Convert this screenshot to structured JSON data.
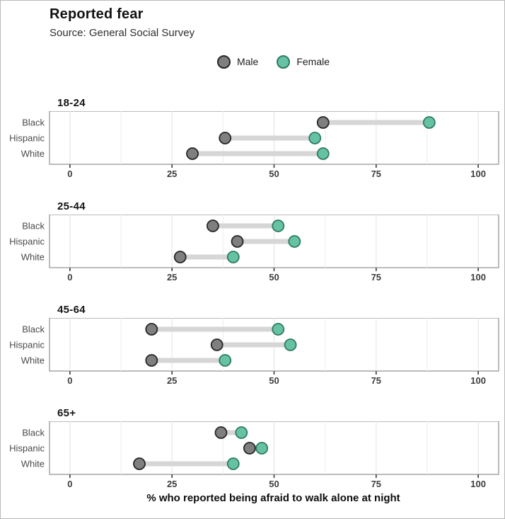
{
  "header": {
    "title": "Reported fear",
    "subtitle": "Source: General Social Survey"
  },
  "legend": {
    "items": [
      {
        "label": "Male",
        "fill": "#7f7f7f",
        "stroke": "#262626"
      },
      {
        "label": "Female",
        "fill": "#66c2a5",
        "stroke": "#2f7a60"
      }
    ]
  },
  "chart_data": {
    "type": "dumbbell",
    "title": "Reported fear",
    "subtitle": "Source: General Social Survey",
    "xlabel": "% who reported being afraid to walk alone at night",
    "x_ticks": [
      0,
      25,
      50,
      75,
      100
    ],
    "x_minor_ticks": [
      12.5,
      37.5,
      62.5,
      87.5
    ],
    "x_range": [
      -5,
      105
    ],
    "grid": "vertical gridlines at major and minor ticks",
    "legend_position": "top-center",
    "series_names": [
      "Male",
      "Female"
    ],
    "facets": [
      {
        "label": "18-24",
        "rows": [
          {
            "category": "Black",
            "male": 62,
            "female": 88
          },
          {
            "category": "Hispanic",
            "male": 38,
            "female": 60
          },
          {
            "category": "White",
            "male": 30,
            "female": 62
          }
        ]
      },
      {
        "label": "25-44",
        "rows": [
          {
            "category": "Black",
            "male": 35,
            "female": 51
          },
          {
            "category": "Hispanic",
            "male": 41,
            "female": 55
          },
          {
            "category": "White",
            "male": 27,
            "female": 40
          }
        ]
      },
      {
        "label": "45-64",
        "rows": [
          {
            "category": "Black",
            "male": 20,
            "female": 51
          },
          {
            "category": "Hispanic",
            "male": 36,
            "female": 54
          },
          {
            "category": "White",
            "male": 20,
            "female": 38
          }
        ]
      },
      {
        "label": "65+",
        "rows": [
          {
            "category": "Black",
            "male": 37,
            "female": 42
          },
          {
            "category": "Hispanic",
            "male": 44,
            "female": 47
          },
          {
            "category": "White",
            "male": 17,
            "female": 40
          }
        ]
      }
    ],
    "colors": {
      "male_fill": "#7f7f7f",
      "male_stroke": "#262626",
      "female_fill": "#66c2a5",
      "female_stroke": "#2f7a60",
      "connector": "#d6d6d6",
      "gridline_major": "#e2e2e2",
      "gridline_minor": "#eeeeee",
      "panel_border": "#8f8f8f",
      "tick_mark": "#3a3a3a"
    }
  }
}
